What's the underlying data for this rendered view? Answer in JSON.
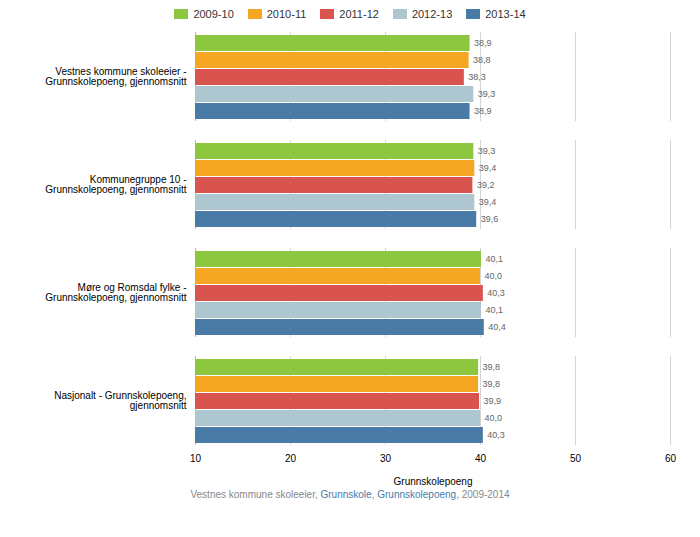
{
  "chart_data": {
    "type": "bar",
    "orientation": "horizontal",
    "categories": [
      "Vestnes kommune skoleeier -\nGrunnskolepoeng, gjennomsnitt",
      "Kommunegruppe 10 -\nGrunnskolepoeng, gjennomsnitt",
      "Møre og Romsdal fylke -\nGrunnskolepoeng, gjennomsnitt",
      "Nasjonalt - Grunnskolepoeng,\ngjennomsnitt"
    ],
    "series": [
      {
        "name": "2009-10",
        "color": "#8dc63f",
        "values": [
          38.9,
          39.3,
          40.1,
          39.8
        ],
        "value_labels": [
          "38,9",
          "39,3",
          "40,1",
          "39,8"
        ]
      },
      {
        "name": "2010-11",
        "color": "#f5a623",
        "values": [
          38.8,
          39.4,
          40.0,
          39.8
        ],
        "value_labels": [
          "38,8",
          "39,4",
          "40,0",
          "39,8"
        ]
      },
      {
        "name": "2011-12",
        "color": "#d9534f",
        "values": [
          38.3,
          39.2,
          40.3,
          39.9
        ],
        "value_labels": [
          "38,3",
          "39,2",
          "40,3",
          "39,9"
        ]
      },
      {
        "name": "2012-13",
        "color": "#aec6cf",
        "values": [
          39.3,
          39.4,
          40.1,
          40.0
        ],
        "value_labels": [
          "39,3",
          "39,4",
          "40,1",
          "40,0"
        ]
      },
      {
        "name": "2013-14",
        "color": "#4a7ba7",
        "values": [
          38.9,
          39.6,
          40.4,
          40.3
        ],
        "value_labels": [
          "38,9",
          "39,6",
          "40,4",
          "40,3"
        ]
      }
    ],
    "xlabel": "Grunnskolepoeng",
    "xlim": [
      10,
      60
    ],
    "xticks": [
      10,
      20,
      30,
      40,
      50,
      60
    ],
    "grid": true,
    "legend": "top",
    "data_labels": true,
    "annotations": [
      {
        "text": "Vestnes kommune skoleeier, ",
        "color": "#888888"
      },
      {
        "text": "Grunnskole",
        "color": "#4a7ba7"
      },
      {
        "text": ", ",
        "color": "#888888"
      },
      {
        "text": "Grunnskolepoeng",
        "color": "#4a7ba7"
      },
      {
        "text": ", 2009-2014",
        "color": "#888888"
      }
    ]
  }
}
